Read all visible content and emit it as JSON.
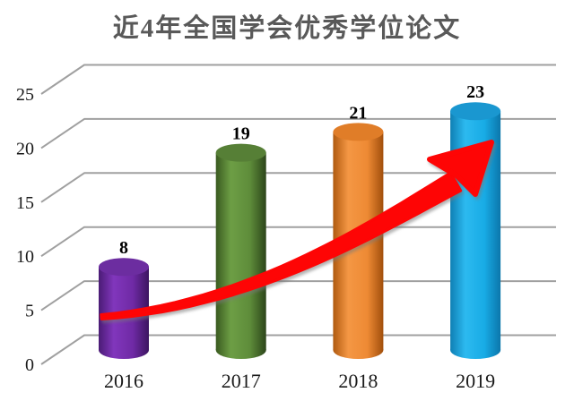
{
  "title": "近4年全国学会优秀学位论文",
  "colors": {
    "background": "#ffffff",
    "title_text": "#595959",
    "gridline": "#a0a0a0",
    "axis_text": "#1a1a1a",
    "value_label_text": "#000000",
    "trend_arrow": "#fe0505"
  },
  "chart_data": {
    "type": "bar",
    "subtype": "3d-cylinder-column",
    "title": "近4年全国学会优秀学位论文",
    "categories": [
      "2016",
      "2017",
      "2018",
      "2019"
    ],
    "values": [
      8,
      19,
      21,
      23
    ],
    "show_data_labels": true,
    "data_labels": [
      "8",
      "19",
      "21",
      "23"
    ],
    "xlabel": "",
    "ylabel": "",
    "y_ticks": [
      0,
      5,
      10,
      15,
      20,
      25
    ],
    "ylim": [
      0,
      25
    ],
    "grid": true,
    "legend": false,
    "bar_styles": [
      {
        "name": "purple",
        "body": [
          "#4a1b75",
          "#8136bc",
          "#6f2aa5",
          "#3c1560"
        ],
        "lid": "#6c2da0"
      },
      {
        "name": "green",
        "body": [
          "#3a5a20",
          "#6d9e45",
          "#5e8c3a",
          "#2c451a"
        ],
        "lid": "#567f36"
      },
      {
        "name": "orange",
        "body": [
          "#b05a10",
          "#f49744",
          "#ee8a34",
          "#a14f0c"
        ],
        "lid": "#e07d28"
      },
      {
        "name": "blue",
        "body": [
          "#0f7fb4",
          "#2cbaf0",
          "#18abe5",
          "#0b76ab"
        ],
        "lid": "#1a97d0"
      }
    ],
    "annotations": [
      {
        "type": "curved-up-arrow",
        "color": "#fe0505"
      }
    ]
  }
}
